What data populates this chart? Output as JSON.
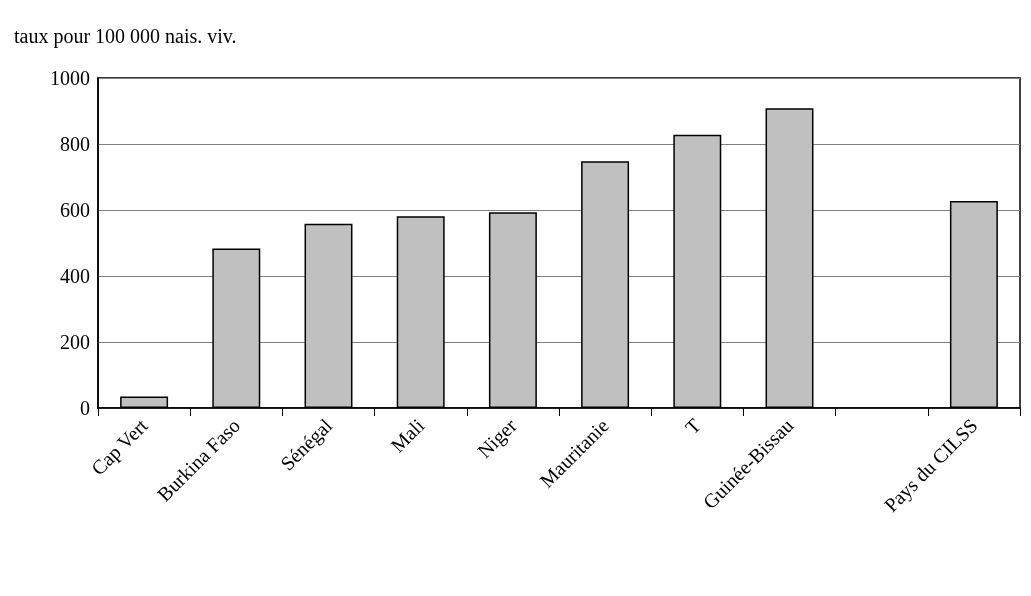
{
  "chart_data": {
    "type": "bar",
    "ylabel": "taux pour 100 000 nais. viv.",
    "categories": [
      "Cap Vert",
      "Burkina Faso",
      "Sénégal",
      "Mali",
      "Niger",
      "Mauritanie",
      "T",
      "Guinée-Bissau",
      null,
      "Pays du CILSS"
    ],
    "values": [
      35,
      483,
      558,
      581,
      593,
      748,
      828,
      908,
      null,
      627
    ],
    "color": "#c0c0c0",
    "ylim": [
      0,
      1000
    ],
    "yticks": [
      0,
      200,
      400,
      600,
      800,
      1000
    ],
    "grid": "y"
  }
}
